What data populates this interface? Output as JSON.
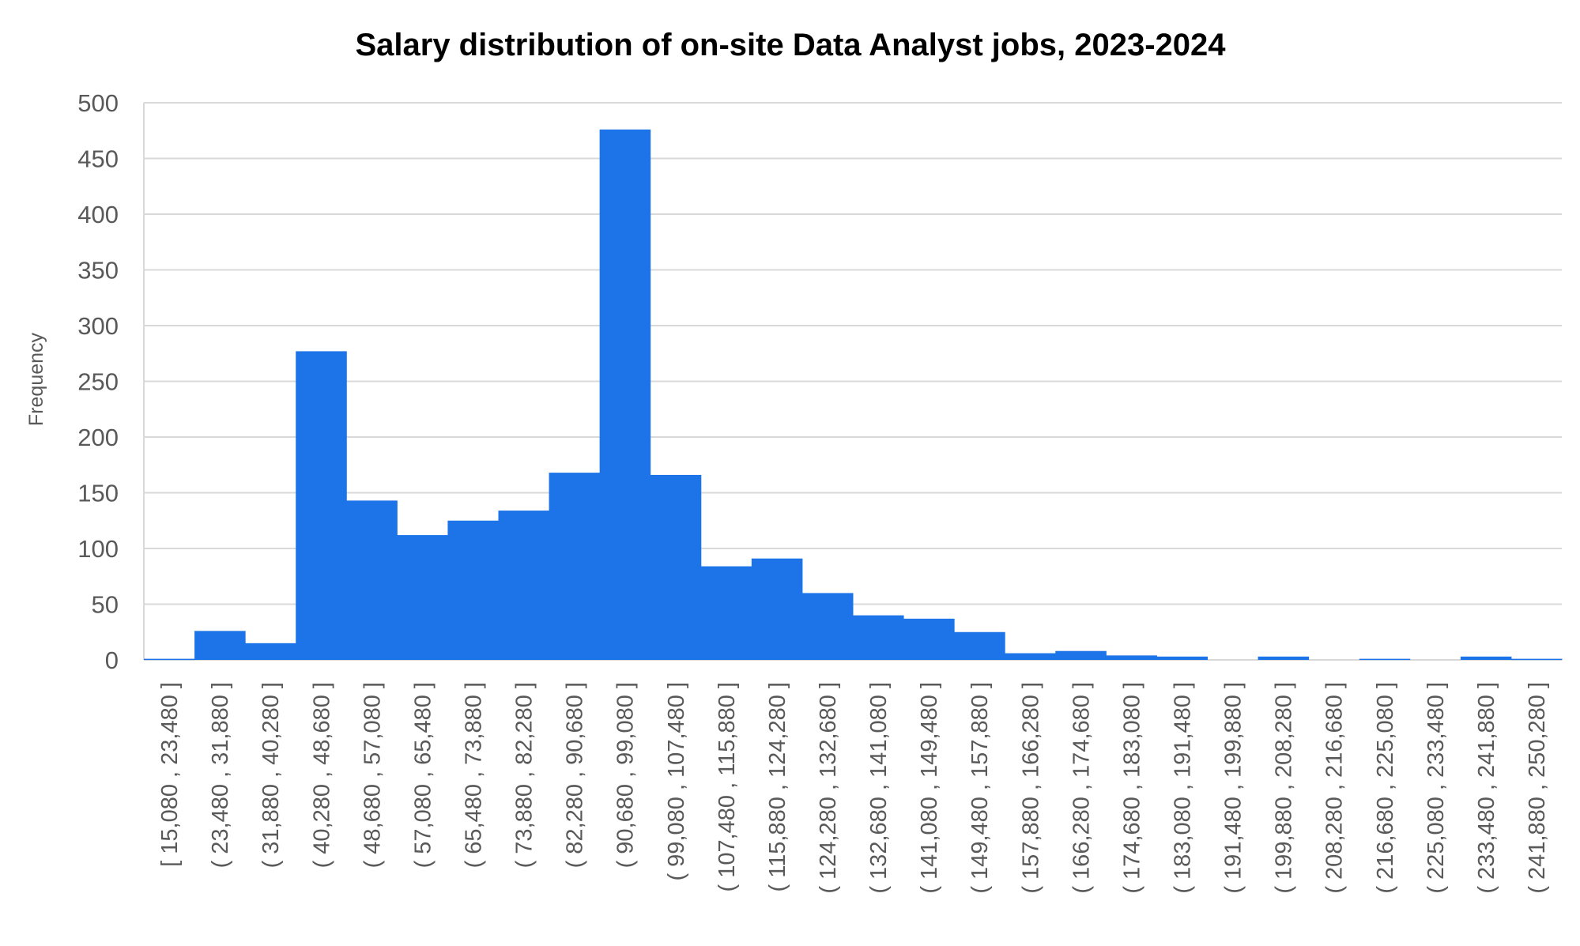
{
  "chart_data": {
    "type": "bar",
    "title": "Salary distribution of on-site Data Analyst jobs, 2023-2024",
    "xlabel": "",
    "ylabel": "Frequency",
    "ylim": [
      0,
      500
    ],
    "yticks": [
      0,
      50,
      100,
      150,
      200,
      250,
      300,
      350,
      400,
      450,
      500
    ],
    "grid": true,
    "legend": "none",
    "bar_color": "#1c74e8",
    "categories": [
      "[ 15,080 ,  23,480 ]",
      "( 23,480 ,  31,880 ]",
      "( 31,880 ,  40,280 ]",
      "( 40,280 ,  48,680 ]",
      "( 48,680 ,  57,080 ]",
      "( 57,080 ,  65,480 ]",
      "( 65,480 ,  73,880 ]",
      "( 73,880 ,  82,280 ]",
      "( 82,280 ,  90,680 ]",
      "( 90,680 ,  99,080 ]",
      "( 99,080 ,  107,480 ]",
      "( 107,480 ,  115,880 ]",
      "( 115,880 ,  124,280 ]",
      "( 124,280 ,  132,680 ]",
      "( 132,680 ,  141,080 ]",
      "( 141,080 ,  149,480 ]",
      "( 149,480 ,  157,880 ]",
      "( 157,880 ,  166,280 ]",
      "( 166,280 ,  174,680 ]",
      "( 174,680 ,  183,080 ]",
      "( 183,080 ,  191,480 ]",
      "( 191,480 ,  199,880 ]",
      "( 199,880 ,  208,280 ]",
      "( 208,280 ,  216,680 ]",
      "( 216,680 ,  225,080 ]",
      "( 225,080 ,  233,480 ]",
      "( 233,480 ,  241,880 ]",
      "( 241,880 ,  250,280 ]"
    ],
    "values": [
      1,
      26,
      15,
      277,
      143,
      112,
      125,
      134,
      168,
      476,
      166,
      84,
      91,
      60,
      40,
      37,
      25,
      6,
      8,
      4,
      3,
      0,
      3,
      0,
      1,
      0,
      3,
      1
    ]
  }
}
